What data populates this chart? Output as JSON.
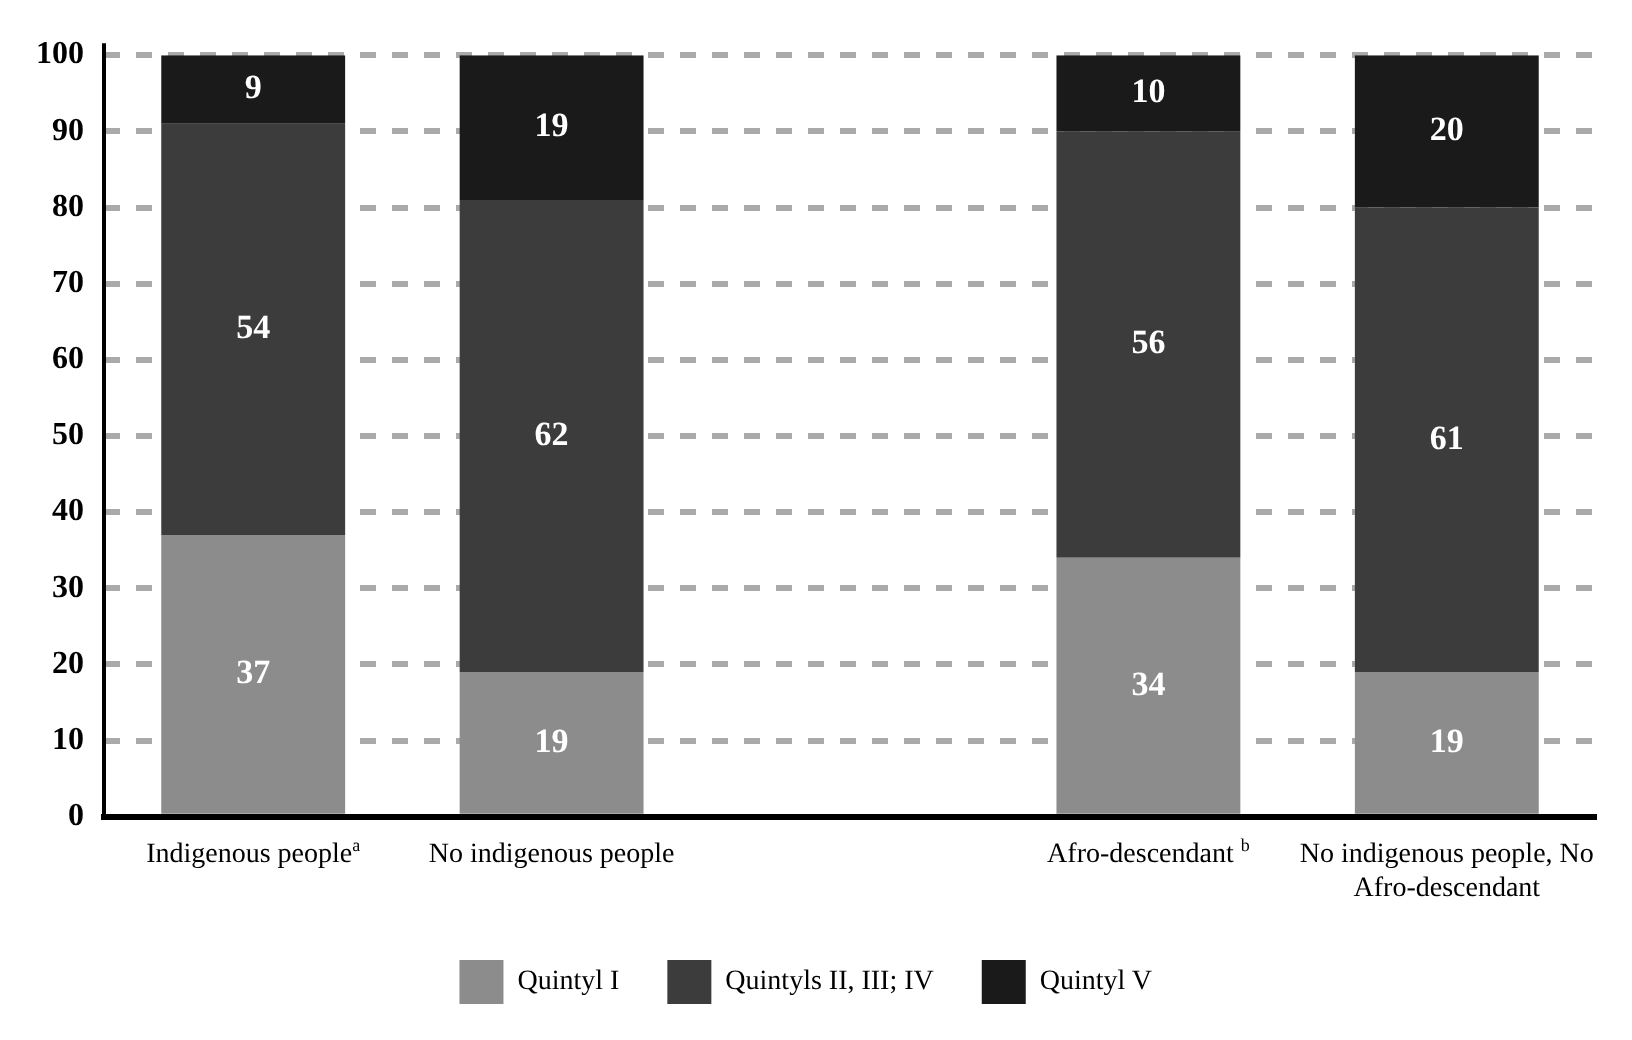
{
  "chart_data": {
    "type": "bar",
    "stacked": true,
    "categories": [
      "Indigenous people$^{a}$",
      "No indigenous people",
      null,
      "Afro-descendant $^{b}$",
      "No indigenous people, No Afro-descendant"
    ],
    "series": [
      {
        "name": "Quintyl I",
        "color": "#8c8c8c",
        "values": [
          37,
          19,
          null,
          34,
          19
        ]
      },
      {
        "name": "Quintyls II, III; IV",
        "color": "#3c3c3c",
        "values": [
          54,
          62,
          null,
          56,
          61
        ]
      },
      {
        "name": "Quintyl V",
        "color": "#1a1a1a",
        "values": [
          9,
          19,
          null,
          10,
          20
        ]
      }
    ],
    "ylim": [
      0,
      100
    ],
    "yticks": [
      0,
      10,
      20,
      30,
      40,
      50,
      60,
      70,
      80,
      90,
      100
    ],
    "grid": "y",
    "legend": "bottom",
    "data_labels": true
  }
}
